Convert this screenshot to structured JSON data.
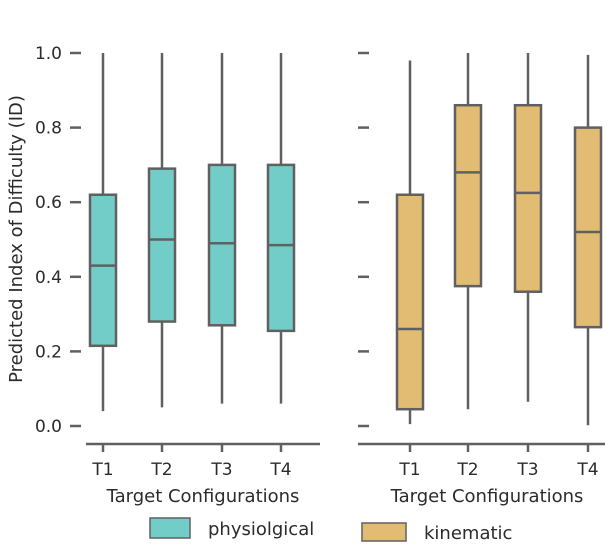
{
  "chart_data": [
    {
      "type": "box",
      "ylabel": "Predicted Index of Difficulty (ID)",
      "xlabel": "Target Configurations",
      "categories": [
        "T1",
        "T2",
        "T3",
        "T4"
      ],
      "ylim": [
        0,
        1
      ],
      "yticks": [
        "0.0",
        "0.2",
        "0.4",
        "0.6",
        "0.8",
        "1.0"
      ],
      "series": [
        {
          "name": "physiolgical",
          "color": "#72cdc9",
          "boxes": [
            {
              "whislo": 0.04,
              "q1": 0.215,
              "med": 0.43,
              "q3": 0.62,
              "whishi": 1.0
            },
            {
              "whislo": 0.05,
              "q1": 0.28,
              "med": 0.5,
              "q3": 0.69,
              "whishi": 1.0
            },
            {
              "whislo": 0.06,
              "q1": 0.27,
              "med": 0.49,
              "q3": 0.7,
              "whishi": 1.0
            },
            {
              "whislo": 0.06,
              "q1": 0.255,
              "med": 0.485,
              "q3": 0.7,
              "whishi": 1.0
            }
          ]
        }
      ]
    },
    {
      "type": "box",
      "ylabel": "",
      "xlabel": "Target Configurations",
      "categories": [
        "T1",
        "T2",
        "T3",
        "T4"
      ],
      "ylim": [
        0,
        1
      ],
      "series": [
        {
          "name": "kinematic",
          "color": "#e2bc72",
          "boxes": [
            {
              "whislo": 0.005,
              "q1": 0.045,
              "med": 0.26,
              "q3": 0.62,
              "whishi": 0.98
            },
            {
              "whislo": 0.045,
              "q1": 0.375,
              "med": 0.68,
              "q3": 0.86,
              "whishi": 1.0
            },
            {
              "whislo": 0.065,
              "q1": 0.36,
              "med": 0.625,
              "q3": 0.86,
              "whishi": 1.0
            },
            {
              "whislo": 0.002,
              "q1": 0.265,
              "med": 0.52,
              "q3": 0.8,
              "whishi": 0.995
            }
          ]
        }
      ]
    }
  ],
  "legend": {
    "items": [
      {
        "label": "physiolgical",
        "color": "#72cdc9"
      },
      {
        "label": "kinematic",
        "color": "#e2bc72"
      }
    ]
  },
  "style": {
    "line_color": "#606060"
  }
}
